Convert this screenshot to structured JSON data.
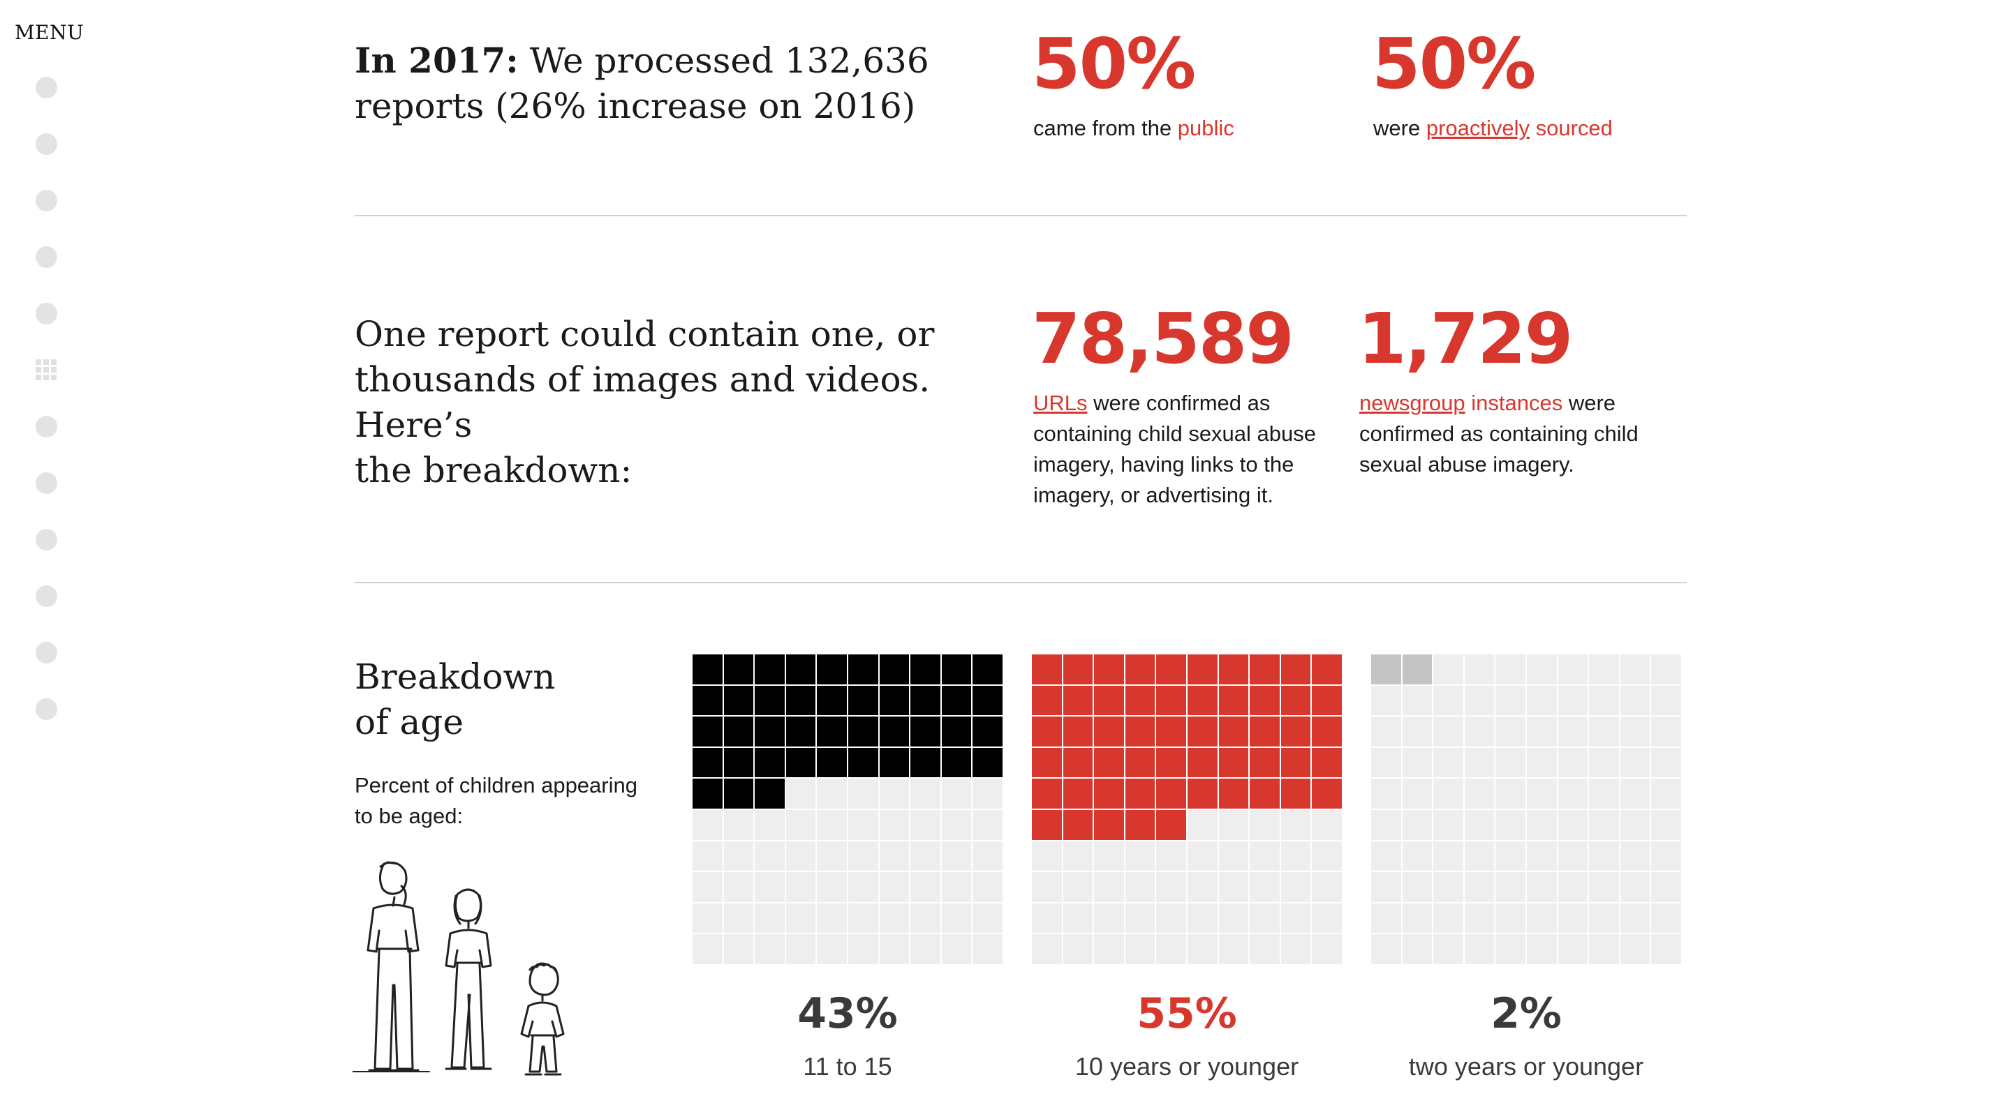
{
  "menu": {
    "label": "MENU"
  },
  "nav": {
    "dot_count_top": 5,
    "dot_count_bottom": 6,
    "active": "grid-icon"
  },
  "section1": {
    "intro_bold": "In 2017:",
    "intro_line1_rest": " We processed 132,636",
    "intro_line2": "reports (26% increase on 2016)",
    "stat1_value": "50%",
    "stat1_text_pre": "came from the ",
    "stat1_link": "public",
    "stat2_value": "50%",
    "stat2_text_pre": "were ",
    "stat2_link": "proactively",
    "stat2_text_post": " sourced"
  },
  "section2": {
    "line1": "One report could contain one, or",
    "line2": "thousands of images and videos. Here’s",
    "line3": "the breakdown:",
    "stat1_value": "78,589",
    "stat1_link": "URLs",
    "stat1_line1_rest": " were confirmed as",
    "stat1_line2": "containing child sexual abuse",
    "stat1_line3": "imagery, having links to the",
    "stat1_line4": "imagery, or advertising it.",
    "stat2_value": "1,729",
    "stat2_link": "newsgroup",
    "stat2_red_word": " instances",
    "stat2_line1_rest": " were",
    "stat2_line2": "confirmed as containing child",
    "stat2_line3": "sexual abuse imagery."
  },
  "section3": {
    "title_line1": "Breakdown",
    "title_line2": "of age",
    "subtitle_line1": "Percent of children appearing",
    "subtitle_line2": "to be aged:"
  },
  "colors": {
    "accent": "#d8372e",
    "black": "#000000",
    "grey_on": "#c4c4c4",
    "empty": "#eeeeee"
  },
  "chart_data": {
    "type": "waffle",
    "grid": "10x10",
    "series": [
      {
        "value": 43,
        "percent_label": "43%",
        "label": "11 to 15",
        "color": "#000000"
      },
      {
        "value": 55,
        "percent_label": "55%",
        "label": "10 years or younger",
        "color": "#d8372e"
      },
      {
        "value": 2,
        "percent_label": "2%",
        "label": "two years or younger",
        "color": "#c4c4c4"
      }
    ]
  }
}
